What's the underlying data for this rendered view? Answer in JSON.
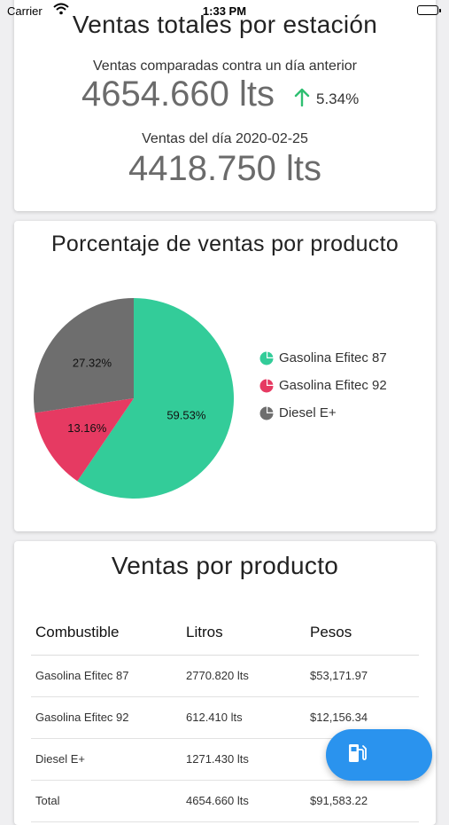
{
  "status_bar": {
    "carrier": "Carrier",
    "time": "1:33 PM"
  },
  "totals_card": {
    "title": "Ventas totales por estación",
    "compare_label": "Ventas comparadas contra un día anterior",
    "compare_value": "4654.660 lts",
    "change_pct": "5.34%",
    "day_label": "Ventas del día 2020-02-25",
    "day_value": "4418.750 lts",
    "arrow_color": "#2fbf71"
  },
  "pie_card": {
    "title": "Porcentaje de ventas por producto",
    "chart_data": {
      "type": "pie",
      "slices": [
        {
          "label": "Gasolina Efitec 87",
          "value": 59.53,
          "display": "59.53%",
          "color": "#33cc99"
        },
        {
          "label": "Gasolina Efitec 92",
          "value": 13.16,
          "display": "13.16%",
          "color": "#e63a62"
        },
        {
          "label": "Diesel E+",
          "value": 27.32,
          "display": "27.32%",
          "color": "#6e6e6e"
        }
      ],
      "legend_position": "right"
    }
  },
  "table_card": {
    "title": "Ventas por producto",
    "headers": [
      "Combustible",
      "Litros",
      "Pesos"
    ],
    "rows": [
      [
        "Gasolina Efitec 87",
        "2770.820 lts",
        "$53,171.97"
      ],
      [
        "Gasolina Efitec 92",
        "612.410 lts",
        "$12,156.34"
      ],
      [
        "Diesel E+",
        "1271.430 lts",
        ""
      ],
      [
        "Total",
        "4654.660 lts",
        "$91,583.22"
      ]
    ]
  },
  "fab": {
    "icon": "gas-pump-icon",
    "color": "#2a93ee"
  }
}
